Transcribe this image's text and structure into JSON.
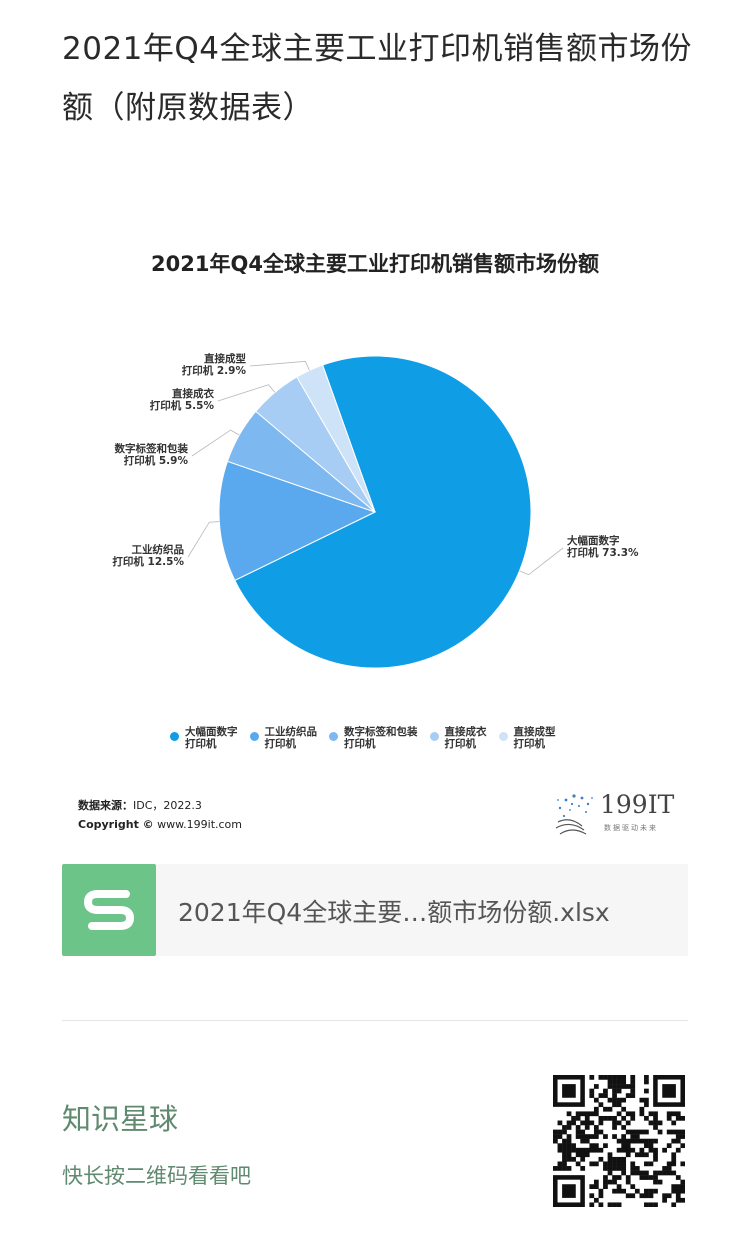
{
  "page": {
    "title": "2021年Q4全球主要工业打印机销售额市场份额（附原数据表）"
  },
  "chart_data": {
    "type": "pie",
    "title": "2021年Q4全球主要工业打印机销售额市场份额",
    "unit": "%",
    "slices": [
      {
        "name": "大幅面数字打印机",
        "value": 73.3,
        "label_lines": [
          "大幅面数字",
          "打印机 73.3%"
        ],
        "color": "#0f9de6"
      },
      {
        "name": "工业纺织品打印机",
        "value": 12.5,
        "label_lines": [
          "工业纺织品",
          "打印机 12.5%"
        ],
        "color": "#5aa9ee"
      },
      {
        "name": "数字标签和包装打印机",
        "value": 5.9,
        "label_lines": [
          "数字标签和包装",
          "打印机 5.9%"
        ],
        "color": "#7db8f0"
      },
      {
        "name": "直接成衣打印机",
        "value": 5.5,
        "label_lines": [
          "直接成衣",
          "打印机 5.5%"
        ],
        "color": "#a8cdf4"
      },
      {
        "name": "直接成型打印机",
        "value": 2.9,
        "label_lines": [
          "直接成型",
          "打印机 2.9%"
        ],
        "color": "#cfe3f8"
      }
    ],
    "legend": {
      "placement": "bottom",
      "items": [
        "大幅面数字\n打印机",
        "工业纺织品\n打印机",
        "数字标签和包装\n打印机",
        "直接成衣\n打印机",
        "直接成型\n打印机"
      ]
    },
    "source_label": "数据来源：",
    "source_value": "IDC，2022.3",
    "copyright_label": "Copyright ©",
    "copyright_value": "www.199it.com"
  },
  "logo": {
    "text": "199IT",
    "tagline": "数据驱动未来"
  },
  "file_card": {
    "icon": "spreadsheet-s-icon",
    "filename": "2021年Q4全球主要…额市场份额.xlsx"
  },
  "promo": {
    "title": "知识星球",
    "subtitle": "快长按二维码看看吧",
    "qr_icon": "qr-code-icon"
  }
}
